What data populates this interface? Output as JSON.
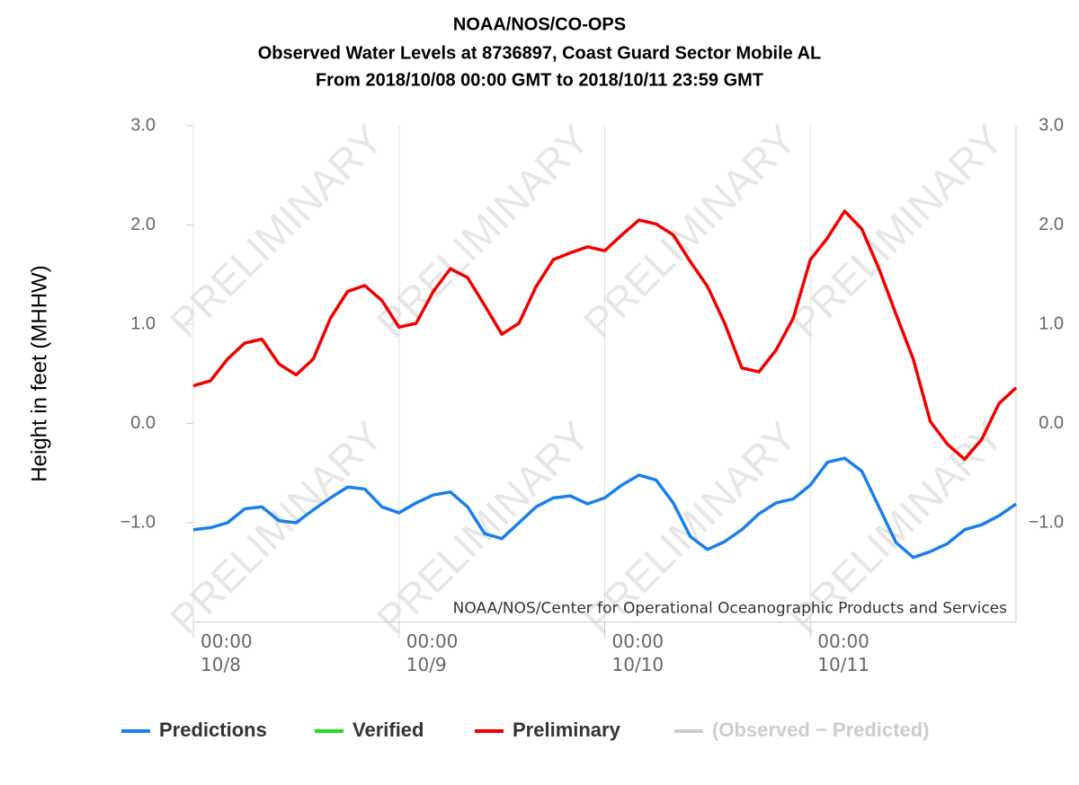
{
  "chart_data": {
    "type": "line",
    "title": [
      "NOAA/NOS/CO-OPS",
      "Observed Water Levels at 8736897, Coast Guard Sector Mobile AL",
      "From 2018/10/08 00:00 GMT to 2018/10/11 23:59 GMT"
    ],
    "y_label": "Height in feet (MHHW)",
    "watermark": "PRELIMINARY",
    "credit": "NOAA/NOS/Center for Operational Oceanographic Products and Services",
    "x": [
      0,
      2,
      4,
      6,
      8,
      10,
      12,
      14,
      16,
      18,
      20,
      22,
      24,
      26,
      28,
      30,
      32,
      34,
      36,
      38,
      40,
      42,
      44,
      46,
      48,
      50,
      52,
      54,
      56,
      58,
      60,
      62,
      64,
      66,
      68,
      70,
      72,
      74,
      76,
      78,
      80,
      82,
      84,
      86,
      88,
      90,
      92,
      94,
      96
    ],
    "xlim": [
      0,
      96
    ],
    "xticks": [
      {
        "value": 0,
        "label": "00:00\n10/8"
      },
      {
        "value": 24,
        "label": "00:00\n10/9"
      },
      {
        "value": 48,
        "label": "00:00\n10/10"
      },
      {
        "value": 72,
        "label": "00:00\n10/11"
      }
    ],
    "ylim": [
      -2,
      3
    ],
    "yticks": [
      {
        "value": 3,
        "label": "3.0"
      },
      {
        "value": 2,
        "label": "2.0"
      },
      {
        "value": 1,
        "label": "1.0"
      },
      {
        "value": 0,
        "label": "0.0"
      },
      {
        "value": -1,
        "label": "−1.0"
      }
    ],
    "grid": "x",
    "series": [
      {
        "name": "Predictions",
        "color": "#1a7fe8",
        "values": [
          -1.07,
          -1.05,
          -1.0,
          -0.86,
          -0.84,
          -0.98,
          -1.0,
          -0.87,
          -0.75,
          -0.64,
          -0.66,
          -0.84,
          -0.9,
          -0.8,
          -0.72,
          -0.69,
          -0.84,
          -1.11,
          -1.16,
          -1.0,
          -0.84,
          -0.75,
          -0.73,
          -0.81,
          -0.75,
          -0.62,
          -0.52,
          -0.57,
          -0.8,
          -1.14,
          -1.27,
          -1.19,
          -1.07,
          -0.91,
          -0.8,
          -0.76,
          -0.62,
          -0.39,
          -0.35,
          -0.48,
          -0.84,
          -1.2,
          -1.35,
          -1.29,
          -1.21,
          -1.07,
          -1.02,
          -0.93,
          -0.81
        ]
      },
      {
        "name": "Preliminary",
        "color": "#f00000",
        "values": [
          0.38,
          0.43,
          0.65,
          0.81,
          0.85,
          0.6,
          0.49,
          0.65,
          1.06,
          1.33,
          1.39,
          1.24,
          0.97,
          1.01,
          1.33,
          1.56,
          1.47,
          1.19,
          0.9,
          1.01,
          1.38,
          1.65,
          1.72,
          1.78,
          1.74,
          1.9,
          2.05,
          2.01,
          1.9,
          1.63,
          1.38,
          1.01,
          0.56,
          0.52,
          0.74,
          1.06,
          1.65,
          1.87,
          2.14,
          1.96,
          1.56,
          1.1,
          0.65,
          0.02,
          -0.21,
          -0.36,
          -0.16,
          0.2,
          0.36
        ]
      }
    ],
    "legend": [
      {
        "name": "Predictions",
        "color": "#1a7fe8"
      },
      {
        "name": "Verified",
        "color": "#22dd22"
      },
      {
        "name": "Preliminary",
        "color": "#f00000"
      },
      {
        "name": "(Observed − Predicted)",
        "color": "#cccccc"
      }
    ]
  }
}
